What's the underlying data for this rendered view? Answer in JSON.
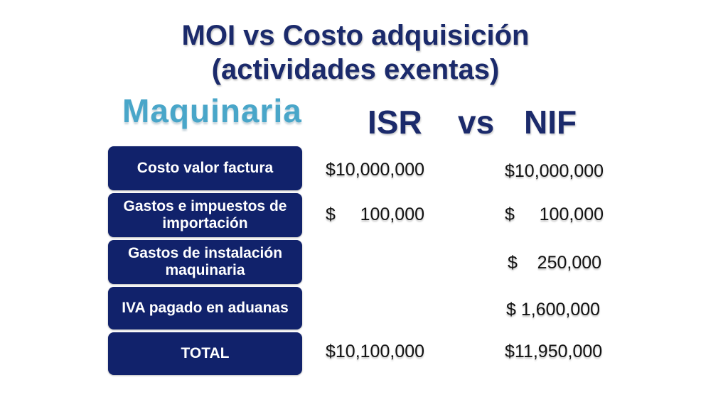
{
  "title": {
    "line1": "MOI vs Costo adquisición",
    "line2": "(actividades exentas)"
  },
  "subtitle": "Maquinaria",
  "headers": {
    "isr": "ISR",
    "vs": "vs",
    "nif": "NIF"
  },
  "rows": [
    {
      "label": "Costo valor factura",
      "isr": "$10,000,000",
      "nif": "$10,000,000"
    },
    {
      "label": "Gastos e impuestos de importación",
      "isr": "$     100,000",
      "nif": "$     100,000"
    },
    {
      "label": "Gastos de instalación maquinaria",
      "isr": "",
      "nif": "$    250,000"
    },
    {
      "label": "IVA pagado en aduanas",
      "isr": "",
      "nif": "$ 1,600,000"
    },
    {
      "label": "TOTAL",
      "isr": "$10,100,000",
      "nif": "$11,950,000"
    }
  ],
  "colors": {
    "title": "#1b2a6b",
    "subtitle": "#49a6c9",
    "box": "#11226b"
  }
}
